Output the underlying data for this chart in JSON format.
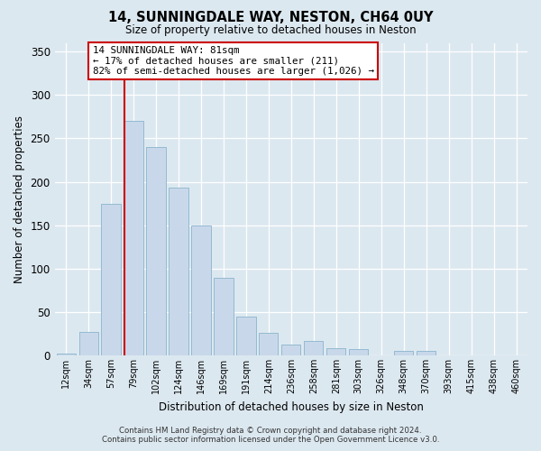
{
  "title": "14, SUNNINGDALE WAY, NESTON, CH64 0UY",
  "subtitle": "Size of property relative to detached houses in Neston",
  "xlabel": "Distribution of detached houses by size in Neston",
  "ylabel": "Number of detached properties",
  "bar_color": "#c8d8ea",
  "bar_edge_color": "#8ab4cc",
  "bin_labels": [
    "12sqm",
    "34sqm",
    "57sqm",
    "79sqm",
    "102sqm",
    "124sqm",
    "146sqm",
    "169sqm",
    "191sqm",
    "214sqm",
    "236sqm",
    "258sqm",
    "281sqm",
    "303sqm",
    "326sqm",
    "348sqm",
    "370sqm",
    "393sqm",
    "415sqm",
    "438sqm",
    "460sqm"
  ],
  "bar_values": [
    2,
    27,
    175,
    270,
    240,
    193,
    150,
    89,
    45,
    26,
    13,
    17,
    8,
    7,
    0,
    5,
    5,
    0,
    0,
    0,
    0
  ],
  "ylim": [
    0,
    360
  ],
  "yticks": [
    0,
    50,
    100,
    150,
    200,
    250,
    300,
    350
  ],
  "vline_x_index": 3,
  "vline_color": "#cc0000",
  "annotation_title": "14 SUNNINGDALE WAY: 81sqm",
  "annotation_line2": "← 17% of detached houses are smaller (211)",
  "annotation_line3": "82% of semi-detached houses are larger (1,026) →",
  "annotation_box_color": "#ffffff",
  "annotation_box_edge": "#cc0000",
  "footer_line1": "Contains HM Land Registry data © Crown copyright and database right 2024.",
  "footer_line2": "Contains public sector information licensed under the Open Government Licence v3.0.",
  "figure_bg_color": "#dce8f0",
  "plot_bg_color": "#dce8f0",
  "grid_color": "#ffffff"
}
